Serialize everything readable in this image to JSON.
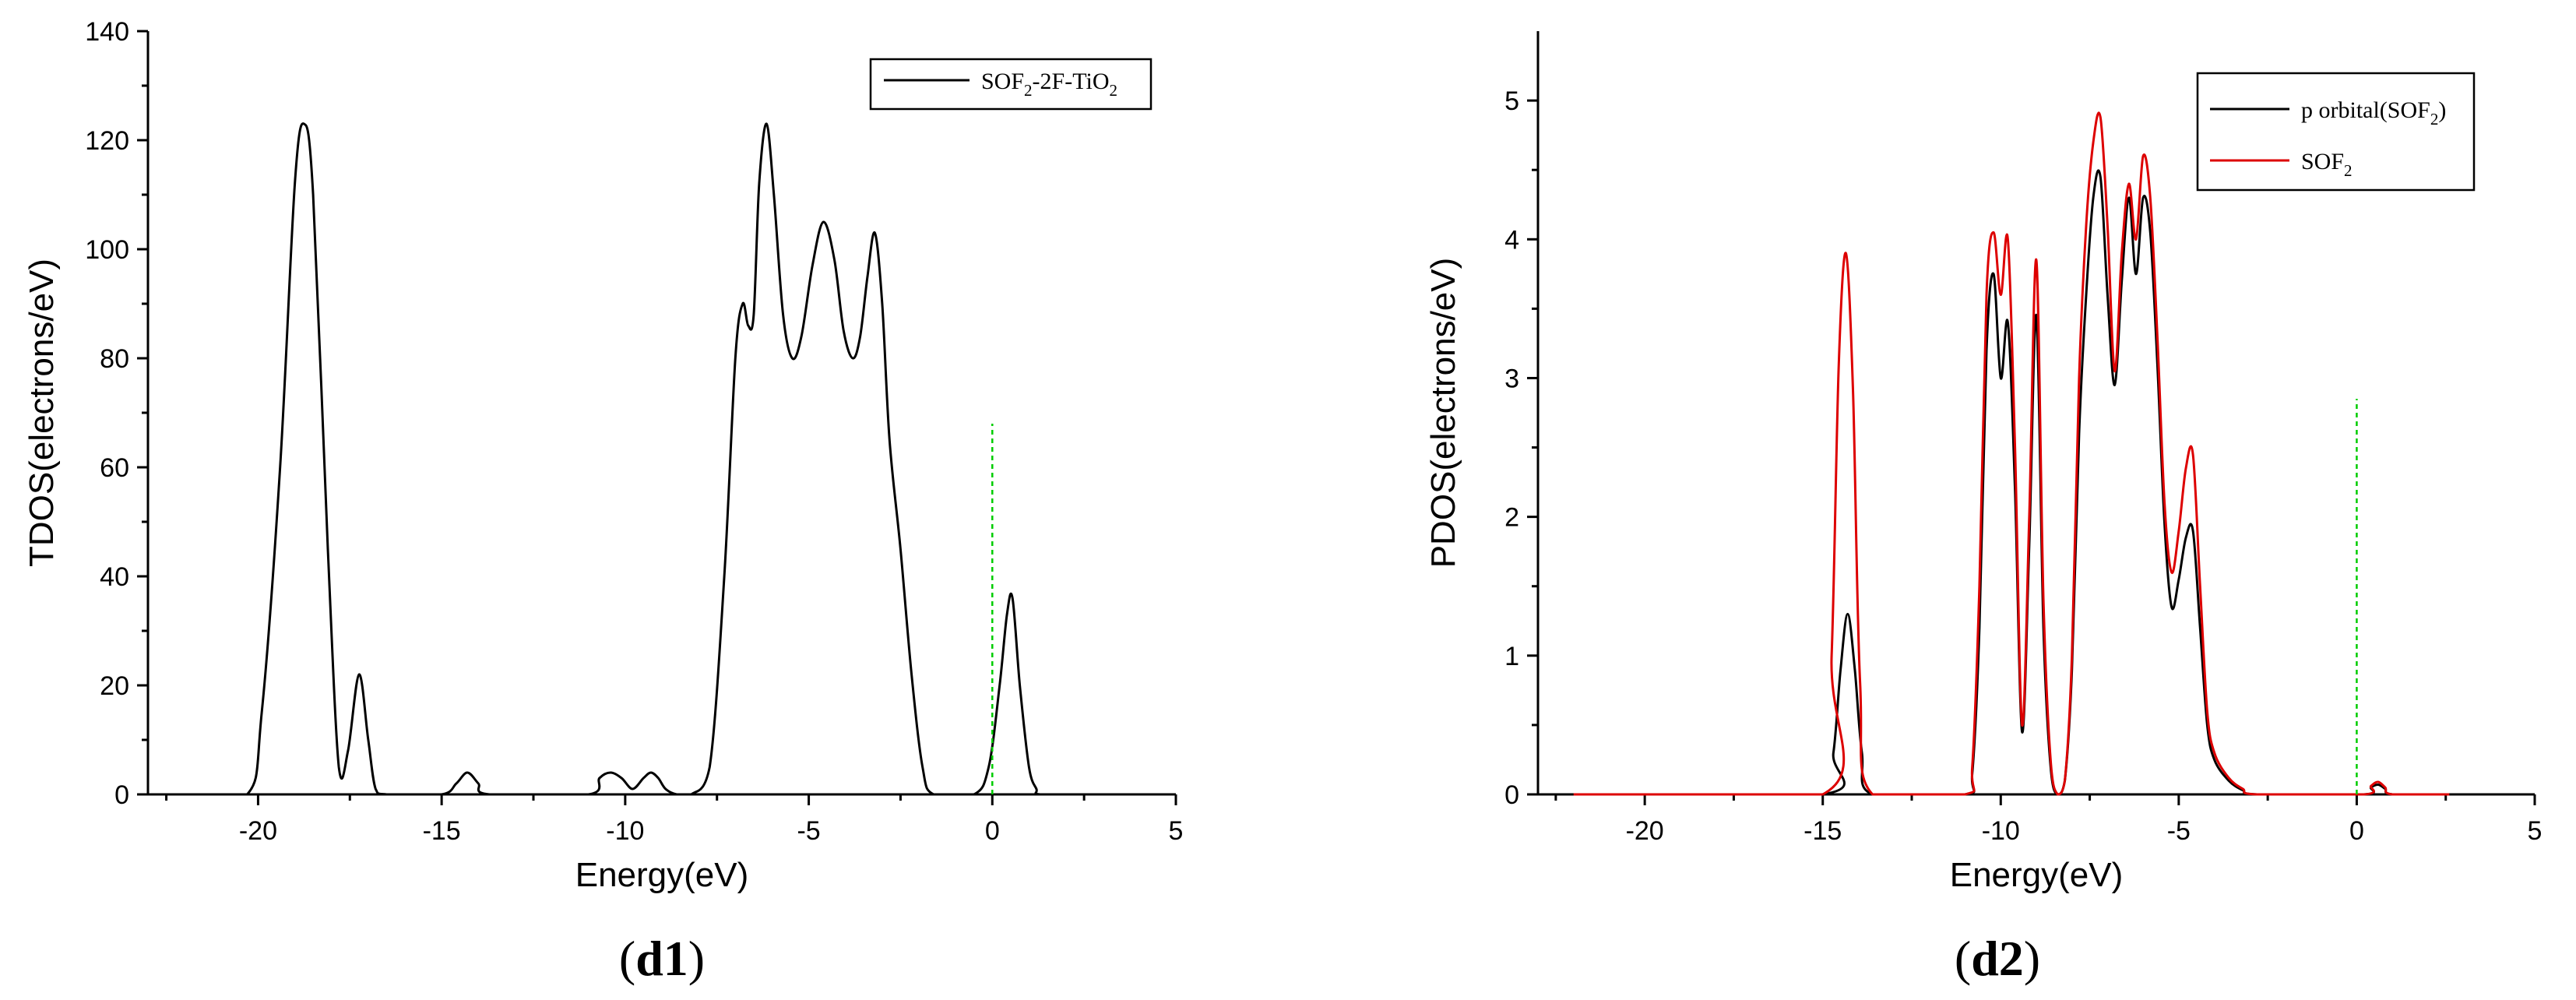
{
  "chart_data": [
    {
      "type": "line",
      "panel_label": "d1",
      "xlabel": "Energy(eV)",
      "ylabel": "TDOS(electrons/eV)",
      "xlim": [
        -23,
        5
      ],
      "ylim": [
        0,
        140
      ],
      "xticks": [
        -20,
        -15,
        -10,
        -5,
        0,
        5
      ],
      "yticks": [
        0,
        20,
        40,
        60,
        80,
        100,
        120,
        140
      ],
      "fermi_level": {
        "x": 0,
        "y_top": 68,
        "color": "#00cc00"
      },
      "legend": {
        "position": "top-right",
        "entries": [
          {
            "base": "SOF",
            "sub1": "2",
            "mid": "-2F-TiO",
            "sub2": "2"
          }
        ]
      },
      "series": [
        {
          "name": "SOF2-2F-TiO2",
          "color": "#000000",
          "x": [
            -22,
            -20.3,
            -19.9,
            -19.4,
            -19.0,
            -18.75,
            -18.5,
            -18.1,
            -17.8,
            -17.55,
            -17.25,
            -17.0,
            -16.8,
            -16.5,
            -15.0,
            -14.6,
            -14.3,
            -14.0,
            -13.7,
            -11.0,
            -10.7,
            -10.4,
            -10.1,
            -9.8,
            -9.5,
            -9.3,
            -9.1,
            -8.9,
            -8.6,
            -8.2,
            -7.7,
            -7.3,
            -7.0,
            -6.8,
            -6.65,
            -6.5,
            -6.35,
            -6.15,
            -5.95,
            -5.7,
            -5.45,
            -5.2,
            -4.9,
            -4.6,
            -4.3,
            -4.05,
            -3.8,
            -3.6,
            -3.4,
            -3.2,
            -3.0,
            -2.8,
            -2.5,
            -2.2,
            -1.9,
            -1.6,
            -0.5,
            -0.1,
            0.2,
            0.4,
            0.55,
            0.75,
            1.0,
            1.2,
            1.3,
            2.6
          ],
          "y": [
            0,
            0,
            15,
            60,
            112,
            123,
            110,
            45,
            5,
            8,
            22,
            10,
            1,
            0,
            0,
            2,
            4,
            2,
            0,
            0,
            3,
            4,
            3,
            1,
            3,
            4,
            3,
            1,
            0,
            0,
            5,
            40,
            80,
            90,
            86,
            88,
            112,
            123,
            110,
            88,
            80,
            84,
            97,
            105,
            98,
            85,
            80,
            84,
            95,
            103,
            90,
            65,
            45,
            22,
            5,
            0,
            0,
            5,
            20,
            33,
            36,
            20,
            5,
            1,
            0,
            0
          ]
        }
      ]
    },
    {
      "type": "line",
      "panel_label": "d2",
      "xlabel": "Energy(eV)",
      "ylabel": "PDOS(electrons/eV)",
      "xlim": [
        -23,
        5
      ],
      "ylim": [
        0,
        5.5
      ],
      "xticks": [
        -20,
        -15,
        -10,
        -5,
        0,
        5
      ],
      "yticks": [
        0,
        1,
        2,
        3,
        4,
        5
      ],
      "fermi_level": {
        "x": 0,
        "y_top": 2.85,
        "color": "#00cc00"
      },
      "legend": {
        "position": "top-right",
        "entries": [
          {
            "base": "p orbital(SOF",
            "sub1": "2",
            "mid": ")",
            "sub2": ""
          },
          {
            "base": "SOF",
            "sub1": "2",
            "mid": "",
            "sub2": ""
          }
        ]
      },
      "series": [
        {
          "name": "p orbital(SOF2)",
          "color": "#000000",
          "x": [
            -22,
            -15.0,
            -14.7,
            -14.5,
            -14.3,
            -14.1,
            -13.9,
            -13.6,
            -11.0,
            -10.8,
            -10.6,
            -10.4,
            -10.2,
            -10.0,
            -9.8,
            -9.6,
            -9.4,
            -9.2,
            -9.0,
            -8.8,
            -8.6,
            -8.4,
            -8.2,
            -8.0,
            -7.8,
            -7.6,
            -7.4,
            -7.2,
            -7.0,
            -6.8,
            -6.6,
            -6.4,
            -6.2,
            -6.0,
            -5.8,
            -5.6,
            -5.4,
            -5.2,
            -5.0,
            -4.8,
            -4.6,
            -4.4,
            -4.2,
            -4.0,
            -3.6,
            -3.2,
            -2.8,
            0.2,
            0.4,
            0.6,
            0.8,
            1.0,
            2.6
          ],
          "y": [
            0,
            0,
            0.3,
            0.9,
            1.3,
            0.9,
            0.3,
            0,
            0,
            0.15,
            1.2,
            3.2,
            3.75,
            3.0,
            3.4,
            2.2,
            0.45,
            1.8,
            3.45,
            1.2,
            0.2,
            0,
            0.1,
            0.9,
            2.6,
            3.6,
            4.3,
            4.45,
            3.6,
            2.95,
            3.7,
            4.3,
            3.75,
            4.3,
            4.05,
            3.1,
            1.95,
            1.35,
            1.55,
            1.85,
            1.9,
            1.2,
            0.5,
            0.25,
            0.1,
            0.03,
            0,
            0,
            0.05,
            0.07,
            0.04,
            0,
            0
          ]
        },
        {
          "name": "SOF2",
          "color": "#dd0000",
          "x": [
            -22,
            -15.0,
            -14.75,
            -14.55,
            -14.35,
            -14.15,
            -13.95,
            -13.6,
            -11.0,
            -10.8,
            -10.6,
            -10.4,
            -10.2,
            -10.0,
            -9.8,
            -9.6,
            -9.4,
            -9.2,
            -9.0,
            -8.8,
            -8.6,
            -8.4,
            -8.2,
            -8.0,
            -7.8,
            -7.6,
            -7.4,
            -7.2,
            -7.0,
            -6.8,
            -6.6,
            -6.4,
            -6.2,
            -6.0,
            -5.8,
            -5.6,
            -5.4,
            -5.2,
            -5.0,
            -4.8,
            -4.6,
            -4.4,
            -4.2,
            -4.0,
            -3.6,
            -3.2,
            -2.8,
            0.2,
            0.4,
            0.6,
            0.8,
            1.0,
            2.6
          ],
          "y": [
            0,
            0,
            1.0,
            3.1,
            3.9,
            2.9,
            0.8,
            0,
            0,
            0.2,
            1.5,
            3.6,
            4.05,
            3.6,
            4.0,
            2.5,
            0.5,
            2.0,
            3.85,
            1.4,
            0.25,
            0,
            0.1,
            1.0,
            3.0,
            4.1,
            4.7,
            4.88,
            4.1,
            3.05,
            3.9,
            4.4,
            4.0,
            4.6,
            4.3,
            3.3,
            2.1,
            1.6,
            1.9,
            2.35,
            2.45,
            1.5,
            0.6,
            0.3,
            0.12,
            0.04,
            0,
            0,
            0.06,
            0.09,
            0.05,
            0,
            0
          ]
        }
      ]
    }
  ]
}
